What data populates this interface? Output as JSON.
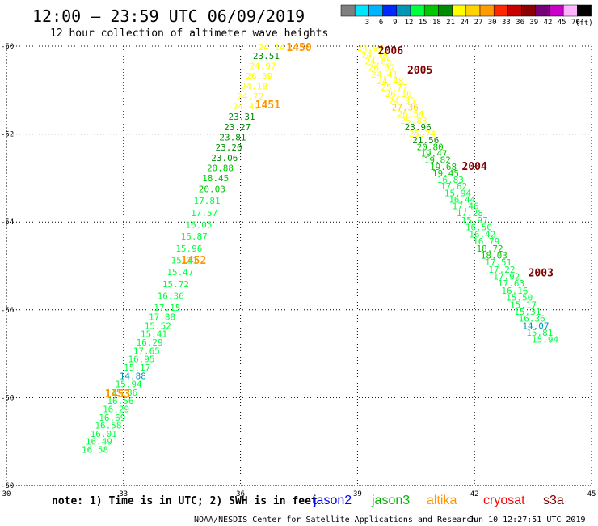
{
  "header": {
    "title": "12:00 – 23:59 UTC 06/09/2019",
    "subtitle": "12 hour collection of altimeter wave heights"
  },
  "color_scale": {
    "unit": "(ft)",
    "bins": [
      {
        "label": "",
        "color": "#7f7f7f"
      },
      {
        "label": "3",
        "color": "#00e5ff"
      },
      {
        "label": "6",
        "color": "#00b4ff"
      },
      {
        "label": "9",
        "color": "#0028ff"
      },
      {
        "label": "12",
        "color": "#0096b4"
      },
      {
        "label": "15",
        "color": "#00ff3c"
      },
      {
        "label": "18",
        "color": "#00c800"
      },
      {
        "label": "21",
        "color": "#008c00"
      },
      {
        "label": "24",
        "color": "#ffff00"
      },
      {
        "label": "27",
        "color": "#ffd200"
      },
      {
        "label": "30",
        "color": "#ff9b00"
      },
      {
        "label": "33",
        "color": "#ff2800"
      },
      {
        "label": "36",
        "color": "#c80000"
      },
      {
        "label": "39",
        "color": "#8c0000"
      },
      {
        "label": "42",
        "color": "#780078"
      },
      {
        "label": "45",
        "color": "#c800c8"
      },
      {
        "label": "70",
        "color": "#ffb4ff"
      },
      {
        "label": "",
        "color": "#000000"
      }
    ]
  },
  "footer": {
    "note": "note: 1) Time is in UTC; 2) SWH is in feet",
    "satellites": [
      {
        "name": "jason2",
        "color": "#0000ff"
      },
      {
        "name": "jason3",
        "color": "#00b400"
      },
      {
        "name": "altika",
        "color": "#ff9600"
      },
      {
        "name": "cryosat",
        "color": "#ff0000"
      },
      {
        "name": "s3a",
        "color": "#800000"
      }
    ],
    "credit": "NOAA/NESDIS Center for Satellite Applications and Research",
    "timestamp": "Jun 10 12:27:51 UTC 2019"
  },
  "chart_data": {
    "type": "scatter",
    "xlim": [
      30,
      45
    ],
    "ylim": [
      -60,
      -50
    ],
    "x_ticks": [
      30,
      33,
      36,
      39,
      42,
      45
    ],
    "y_ticks": [
      -50,
      -52,
      -54,
      -56,
      -58,
      -60
    ],
    "grid": true,
    "series": [
      {
        "name": "altika",
        "color": "#ff9600",
        "points": [
          {
            "x": 36.8,
            "y": -50.02,
            "value": 24.14
          },
          {
            "x": 36.66,
            "y": -50.22,
            "value": 23.51
          },
          {
            "x": 36.57,
            "y": -50.45,
            "value": 24.97
          },
          {
            "x": 36.48,
            "y": -50.68,
            "value": 26.39
          },
          {
            "x": 36.35,
            "y": -50.91,
            "value": 24.18
          },
          {
            "x": 36.25,
            "y": -51.14,
            "value": 24.72
          },
          {
            "x": 36.14,
            "y": -51.37,
            "value": 24.49
          },
          {
            "x": 36.03,
            "y": -51.6,
            "value": 23.31
          },
          {
            "x": 35.92,
            "y": -51.84,
            "value": 23.27
          },
          {
            "x": 35.8,
            "y": -52.07,
            "value": 23.81
          },
          {
            "x": 35.7,
            "y": -52.3,
            "value": 23.2
          },
          {
            "x": 35.59,
            "y": -52.54,
            "value": 23.06
          },
          {
            "x": 35.48,
            "y": -52.77,
            "value": 20.88
          },
          {
            "x": 35.36,
            "y": -53.0,
            "value": 18.45
          },
          {
            "x": 35.27,
            "y": -53.25,
            "value": 20.03
          },
          {
            "x": 35.14,
            "y": -53.52,
            "value": 17.81
          },
          {
            "x": 35.07,
            "y": -53.79,
            "value": 17.57
          },
          {
            "x": 34.93,
            "y": -54.06,
            "value": 16.05
          },
          {
            "x": 34.81,
            "y": -54.33,
            "value": 15.87
          },
          {
            "x": 34.68,
            "y": -54.6,
            "value": 15.96
          },
          {
            "x": 34.56,
            "y": -54.87,
            "value": 15.31
          },
          {
            "x": 34.45,
            "y": -55.14,
            "value": 15.47
          },
          {
            "x": 34.34,
            "y": -55.41,
            "value": 15.72
          },
          {
            "x": 34.21,
            "y": -55.68,
            "value": 16.36
          },
          {
            "x": 34.12,
            "y": -55.95,
            "value": 17.15
          },
          {
            "x": 33.99,
            "y": -56.16,
            "value": 17.88
          },
          {
            "x": 33.88,
            "y": -56.36,
            "value": 15.52
          },
          {
            "x": 33.78,
            "y": -56.55,
            "value": 15.41
          },
          {
            "x": 33.67,
            "y": -56.74,
            "value": 16.29
          },
          {
            "x": 33.59,
            "y": -56.93,
            "value": 17.65
          },
          {
            "x": 33.46,
            "y": -57.12,
            "value": 16.95
          },
          {
            "x": 33.35,
            "y": -57.31,
            "value": 15.17
          },
          {
            "x": 33.24,
            "y": -57.5,
            "value": 14.88
          },
          {
            "x": 33.13,
            "y": -57.69,
            "value": 15.94
          },
          {
            "x": 33.02,
            "y": -57.88,
            "value": 15.86
          },
          {
            "x": 32.92,
            "y": -58.07,
            "value": 16.56
          },
          {
            "x": 32.81,
            "y": -58.26,
            "value": 16.29
          },
          {
            "x": 32.71,
            "y": -58.45,
            "value": 16.69
          },
          {
            "x": 32.61,
            "y": -58.63,
            "value": 16.58
          },
          {
            "x": 32.49,
            "y": -58.82,
            "value": 16.01
          },
          {
            "x": 32.37,
            "y": -59.0,
            "value": 16.49
          },
          {
            "x": 32.27,
            "y": -59.18,
            "value": 16.58
          },
          {
            "x": 39.33,
            "y": -50.04,
            "value": 24.99
          },
          {
            "x": 39.44,
            "y": -50.19,
            "value": 24.18
          },
          {
            "x": 39.53,
            "y": -50.34,
            "value": 24.85
          },
          {
            "x": 39.62,
            "y": -50.49,
            "value": 26.32
          },
          {
            "x": 39.69,
            "y": -50.64,
            "value": 24.41
          },
          {
            "x": 39.84,
            "y": -50.79,
            "value": 24.48
          },
          {
            "x": 39.94,
            "y": -50.94,
            "value": 25.77
          },
          {
            "x": 40.05,
            "y": -51.09,
            "value": 26.1
          },
          {
            "x": 40.14,
            "y": -51.24,
            "value": 24.35
          },
          {
            "x": 40.22,
            "y": -51.39,
            "value": 27.36
          },
          {
            "x": 40.36,
            "y": -51.54,
            "value": 26.54
          },
          {
            "x": 40.44,
            "y": -51.69,
            "value": 25.83
          },
          {
            "x": 40.55,
            "y": -51.84,
            "value": 23.96
          },
          {
            "x": 40.66,
            "y": -51.99,
            "value": 25.74
          },
          {
            "x": 40.75,
            "y": -52.14,
            "value": 21.56
          },
          {
            "x": 40.86,
            "y": -52.29,
            "value": 20.8
          },
          {
            "x": 40.96,
            "y": -52.44,
            "value": 19.47
          },
          {
            "x": 41.05,
            "y": -52.59,
            "value": 19.82
          },
          {
            "x": 41.2,
            "y": -52.74,
            "value": 19.68
          },
          {
            "x": 41.26,
            "y": -52.89,
            "value": 19.45
          },
          {
            "x": 41.38,
            "y": -53.04,
            "value": 16.83
          },
          {
            "x": 41.47,
            "y": -53.19,
            "value": 17.62
          },
          {
            "x": 41.57,
            "y": -53.34,
            "value": 15.94
          },
          {
            "x": 41.68,
            "y": -53.49,
            "value": 16.44
          },
          {
            "x": 41.77,
            "y": -53.64,
            "value": 17.46
          },
          {
            "x": 41.88,
            "y": -53.79,
            "value": 17.28
          },
          {
            "x": 42.0,
            "y": -53.96,
            "value": 15.97
          },
          {
            "x": 42.11,
            "y": -54.12,
            "value": 16.5
          },
          {
            "x": 42.2,
            "y": -54.28,
            "value": 16.42
          },
          {
            "x": 42.3,
            "y": -54.44,
            "value": 16.79
          },
          {
            "x": 42.39,
            "y": -54.6,
            "value": 18.72
          },
          {
            "x": 42.5,
            "y": -54.76,
            "value": 18.03
          },
          {
            "x": 42.61,
            "y": -54.92,
            "value": 17.51
          },
          {
            "x": 42.7,
            "y": -55.08,
            "value": 17.22
          },
          {
            "x": 42.82,
            "y": -55.24,
            "value": 17.92
          },
          {
            "x": 42.94,
            "y": -55.4,
            "value": 17.63
          },
          {
            "x": 43.03,
            "y": -55.56,
            "value": 16.16
          },
          {
            "x": 43.15,
            "y": -55.72,
            "value": 15.5
          },
          {
            "x": 43.25,
            "y": -55.88,
            "value": 15.17
          },
          {
            "x": 43.36,
            "y": -56.04,
            "value": 15.31
          },
          {
            "x": 43.47,
            "y": -56.2,
            "value": 16.36
          },
          {
            "x": 43.57,
            "y": -56.36,
            "value": 14.07
          },
          {
            "x": 43.67,
            "y": -56.52,
            "value": 15.81
          },
          {
            "x": 43.81,
            "y": -56.68,
            "value": 15.94
          }
        ]
      }
    ],
    "annotations": [
      {
        "text": "1450",
        "x": 37.5,
        "y": -50.02,
        "color": "#ff9600"
      },
      {
        "text": "1451",
        "x": 36.7,
        "y": -51.33,
        "color": "#ff9600"
      },
      {
        "text": "1452",
        "x": 34.8,
        "y": -54.86,
        "color": "#ff9600"
      },
      {
        "text": "1453",
        "x": 32.85,
        "y": -57.9,
        "color": "#ff9600"
      },
      {
        "text": "2006",
        "x": 39.85,
        "y": -50.09,
        "color": "#800000"
      },
      {
        "text": "2005",
        "x": 40.6,
        "y": -50.53,
        "color": "#800000"
      },
      {
        "text": "2004",
        "x": 42.0,
        "y": -52.73,
        "color": "#800000"
      },
      {
        "text": "2003",
        "x": 43.7,
        "y": -55.15,
        "color": "#800000"
      }
    ]
  }
}
